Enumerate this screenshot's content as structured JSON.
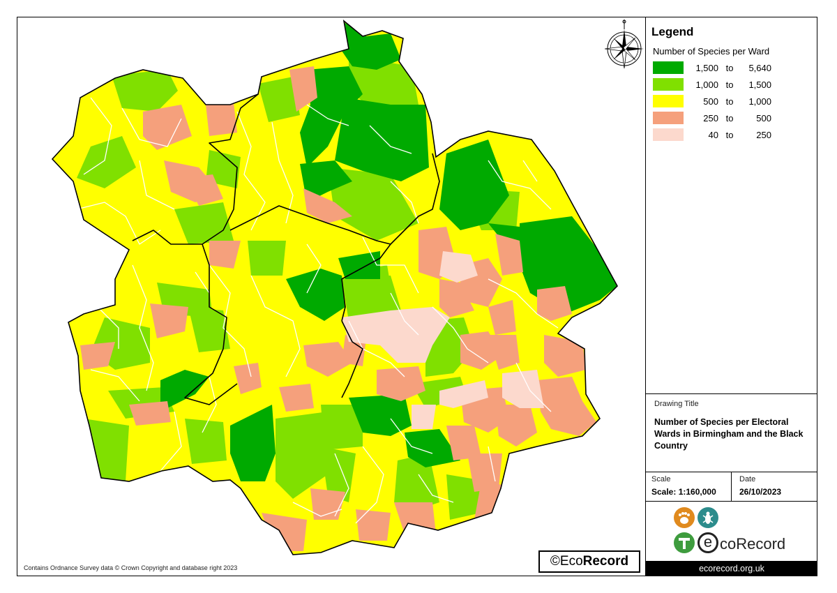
{
  "legend": {
    "title": "Legend",
    "subtitle": "Number of Species per Ward",
    "classes": [
      {
        "lo": "1,500",
        "to": "to",
        "hi": "5,640",
        "color": "#00aa00"
      },
      {
        "lo": "1,000",
        "to": "to",
        "hi": "1,500",
        "color": "#80e000"
      },
      {
        "lo": "500",
        "to": "to",
        "hi": "1,000",
        "color": "#ffff00"
      },
      {
        "lo": "250",
        "to": "to",
        "hi": "500",
        "color": "#f5a07c"
      },
      {
        "lo": "40",
        "to": "to",
        "hi": "250",
        "color": "#fcd9cd"
      }
    ]
  },
  "drawing": {
    "label": "Drawing Title",
    "title": "Number of Species per Electoral Wards in Birmingham and the Black Country"
  },
  "scale": {
    "label": "Scale",
    "value": "Scale: 1:160,000"
  },
  "date": {
    "label": "Date",
    "value": "26/10/2023"
  },
  "logo": {
    "brand": "coRecord",
    "brand_initial": "e",
    "url": "ecorecord.org.uk"
  },
  "badge": {
    "prefix": "©Eco",
    "bold": "Record"
  },
  "footer": {
    "copyright": "Contains Ordnance Survey data © Crown Copyright and database right 2023"
  },
  "icons": {
    "north_arrow": "compass-rose-icon"
  }
}
